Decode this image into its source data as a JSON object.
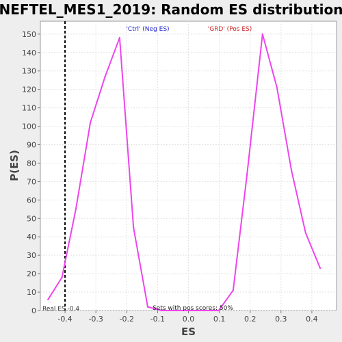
{
  "chart_data": {
    "type": "line",
    "title": "NEFTEL_MES1_2019: Random ES distribution",
    "xlabel": "ES",
    "ylabel": "P(ES)",
    "xlim": [
      -0.48,
      0.48
    ],
    "ylim": [
      0,
      157
    ],
    "x_ticks": [
      -0.4,
      -0.3,
      -0.2,
      -0.1,
      0.0,
      0.1,
      0.2,
      0.3,
      0.4
    ],
    "x_tick_labels": [
      "-0.4",
      "-0.3",
      "-0.2",
      "-0.1",
      "0.0",
      "0.1",
      "0.2",
      "0.3",
      "0.4"
    ],
    "y_ticks": [
      0,
      10,
      20,
      30,
      40,
      50,
      60,
      70,
      80,
      90,
      100,
      110,
      120,
      130,
      140,
      150
    ],
    "grid": true,
    "series": [
      {
        "color": "#ee44ee",
        "x": [
          -0.455,
          -0.41,
          -0.365,
          -0.318,
          -0.27,
          -0.223,
          -0.178,
          -0.132,
          -0.087,
          -0.04,
          0.005,
          0.05,
          0.098,
          0.145,
          0.19,
          0.24,
          0.287,
          0.334,
          0.38,
          0.427
        ],
        "y": [
          6,
          18,
          55,
          102,
          127,
          148,
          45,
          2,
          0,
          0,
          0,
          0,
          0,
          11,
          74,
          150,
          121,
          76,
          42,
          23
        ]
      }
    ],
    "real_es": {
      "x": -0.4,
      "color": "#000000",
      "label": "Real ES -0.4"
    },
    "annotations": {
      "neg_label": {
        "text": "'Ctrl' (Neg ES)",
        "color": "#2222cc"
      },
      "pos_label": {
        "text": "'GRD' (Pos ES)",
        "color": "#cc2222"
      },
      "pos_scores": {
        "text": "Sets with pos scores: 50%",
        "color": "#222222"
      }
    }
  }
}
